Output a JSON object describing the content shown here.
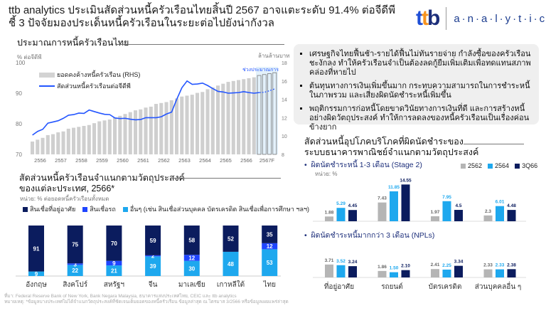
{
  "header": {
    "title_line1": "ttb analytics ประเมินสัดส่วนหนี้ครัวเรือนไทยสิ้นปี 2567 อาจแตะระดับ 91.4% ต่อจีดีพี",
    "title_line2": "ชี้ 3 ปัจจัยมองประเด็นหนี้ครัวเรือนในระยะต่อไปยังน่ากังวล",
    "logo_ttb": "ttb",
    "logo_analytics": "a·n·a·l·y·t·i·c·s"
  },
  "bullets": [
    "เศรษฐกิจไทยฟื้นช้า-รายได้ฟื้นไม่ทันรายจ่าย กำลังซื้อของครัวเรือนชะงักลง ทำให้ครัวเรือนจำเป็นต้องลดกู้ยืมเพิ่มเติมเพื่อทดแทนสภาพคล่องที่หายไป",
    "ต้นทุนทางการเงินเพิ่มขึ้นมาก กระทบความสามารถในการชำระหนี้ในภาพรวม และเสี่ยงผิดนัดชำระหนี้เพิ่มขึ้น",
    "พฤติกรรมการก่อหนี้โดยขาดวินัยทางการเงินที่ดี และการสร้างหนี้อย่างผิดวัตถุประสงค์ ทำให้การลดลงของหนี้ครัวเรือนเป็นเรื่องค่อนข้างยาก"
  ],
  "footnote": {
    "source": "ที่มา: Federal Reserve Bank of New York, Bank Negara Malaysia, ธนาคารแห่งประเทศไทย, CEIC และ ttb analytics",
    "note": "หมายเหตุ: *ข้อมูลบางประเทศไม่ได้จำแนกวัตถุประสงค์ที่ชัดเจนเต็มยอดของหนี้ครัวเรือน ข้อมูลล่าสุด ณ ไตรมาส 3/2566 หรือข้อมูลเผยแพร่ล่าสุด"
  },
  "colors": {
    "navy": "#0b1c5e",
    "blue": "#1f45ff",
    "light": "#1ea8ee",
    "gray": "#cfcfcf",
    "line": "#2456ff"
  },
  "chart_data": [
    {
      "type": "bar+line",
      "title": "ประมาณการหนี้ครัวเรือนไทย",
      "ylabel_left": "% ต่อจีดีพี",
      "ylabel_right": "ล้านล้านบาท",
      "ylim_left": [
        70,
        100
      ],
      "ylim_right": [
        8,
        18
      ],
      "yticks_left": [
        "100",
        "90",
        "80",
        "70"
      ],
      "yticks_right": [
        "18",
        "16",
        "14",
        "12",
        "10",
        "8"
      ],
      "xticks": [
        "2556",
        "2557",
        "2558",
        "2559",
        "2560",
        "2561",
        "2562",
        "2563",
        "2564",
        "2565",
        "2566",
        "2567F"
      ],
      "forecast_label": "ช่วงประมาณการ",
      "forecast_quarters": 4,
      "series": [
        {
          "name": "ยอดคงค้างหนี้ครัวเรือน (RHS)",
          "type": "bar",
          "values": [
            9.4,
            9.6,
            9.8,
            10.1,
            10.2,
            10.4,
            10.5,
            10.8,
            10.9,
            11.0,
            11.1,
            11.2,
            11.4,
            11.6,
            11.7,
            11.8,
            12.0,
            12.2,
            12.4,
            12.6,
            12.8,
            12.9,
            13.1,
            13.2,
            13.5,
            13.6,
            13.7,
            13.9,
            14.1,
            14.3,
            14.4,
            14.5,
            14.7,
            14.8,
            15.1,
            15.3,
            15.5,
            15.7,
            15.9,
            16.0,
            16.1,
            16.2,
            16.3,
            16.4,
            16.6,
            16.7,
            16.8,
            16.9
          ]
        },
        {
          "name": "สัดส่วนหนี้ครัวเรือนต่อจีดีพี",
          "type": "line",
          "values": [
            76.3,
            77.5,
            78.2,
            80.2,
            80.6,
            81.0,
            81.8,
            82.8,
            83.0,
            83.5,
            83.4,
            84.5,
            84.0,
            83.5,
            83.1,
            83.0,
            81.9,
            81.7,
            81.8,
            81.5,
            81.3,
            81.4,
            82.0,
            82.0,
            82.0,
            82.3,
            83.2,
            83.8,
            88.0,
            91.8,
            94.0,
            92.9,
            93.0,
            93.3,
            92.5,
            91.5,
            90.6,
            90.4,
            90.0,
            90.1,
            90.2,
            90.5,
            90.2,
            90.0,
            90.2,
            90.3,
            90.8,
            91.4
          ]
        }
      ]
    },
    {
      "type": "stacked-bar",
      "title_line1": "สัดส่วนหนี้ครัวเรือนจำแนกตามวัตถุประสงค์",
      "title_line2": "ของแต่ละประเทศ, 2566*",
      "unit": "หน่วย: % ต่อยอดหนี้ครัวเรือนทั้งหมด",
      "categories": [
        "อังกฤษ",
        "สิงคโปร์",
        "สหรัฐฯ",
        "จีน",
        "มาเลเซีย",
        "เกาหลีใต้",
        "ไทย"
      ],
      "series": [
        {
          "name": "อื่นๆ (เช่น สินเชื่อส่วนบุคคล บัตรเครดิต สินเชื่อเพื่อการศึกษา ฯลฯ)",
          "values": [
            9,
            22,
            21,
            39,
            30,
            48,
            53
          ]
        },
        {
          "name": "สินเชื่อรถ",
          "values": [
            0,
            3,
            9,
            2,
            12,
            0,
            12
          ]
        },
        {
          "name": "สินเชื่อที่อยู่อาศัย",
          "values": [
            91,
            75,
            70,
            59,
            58,
            52,
            35
          ]
        }
      ]
    },
    {
      "type": "grouped-bar",
      "title_line1": "สัดส่วนหนี้อุปโภคบริโภคที่ผิดนัดชำระของ",
      "title_line2": "ระบบธนาคารพาณิชย์จำแนกตามวัตถุประสงค์",
      "unit": "หน่วย: %",
      "categories": [
        "ที่อยู่อาศัย",
        "รถยนต์",
        "บัตรเครดิต",
        "ส่วนบุคคลอื่น ๆ"
      ],
      "legend": [
        "2562",
        "2564",
        "3Q66"
      ],
      "panels": [
        {
          "title": "ผิดนัดชำระหนี้ 1-3 เดือน (Stage 2)",
          "values": [
            [
              1.88,
              5.29,
              4.45
            ],
            [
              7.43,
              11.85,
              14.55
            ],
            [
              1.97,
              7.95,
              4.5
            ],
            [
              2.3,
              6.01,
              4.48
            ]
          ],
          "labels": [
            [
              "1.88",
              "5.29",
              "4.45"
            ],
            [
              "7.43",
              "11.85",
              "14.55"
            ],
            [
              "1.97",
              "7.95",
              "4.5"
            ],
            [
              "2.3",
              "6.01",
              "4.48"
            ]
          ]
        },
        {
          "title": "ผิดนัดชำระหนี้มากกว่า 3 เดือน (NPLs)",
          "values": [
            [
              3.71,
              3.52,
              3.24
            ],
            [
              1.86,
              1.5,
              2.1
            ],
            [
              2.41,
              2.25,
              3.34
            ],
            [
              2.33,
              2.33,
              2.38
            ]
          ],
          "labels": [
            [
              "3.71",
              "3.52",
              "3.24"
            ],
            [
              "1.86",
              "1.50",
              "2.10"
            ],
            [
              "2.41",
              "2.25",
              "3.34"
            ],
            [
              "2.33",
              "2.33",
              "2.38"
            ]
          ]
        }
      ]
    }
  ]
}
